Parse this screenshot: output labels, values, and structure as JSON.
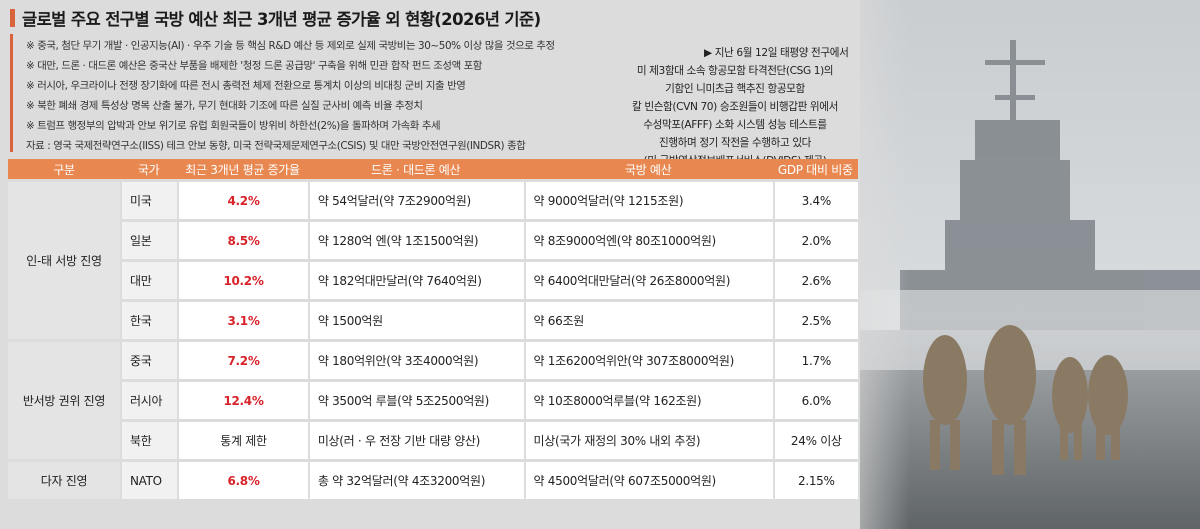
{
  "header": {
    "title": "글로벌 주요 전구별 국방 예산 최근 3개년 평균 증가율 외 현황(2026년 기준)"
  },
  "notes": [
    "※ 중국, 첨단 무기 개발 · 인공지능(AI) · 우주 기술 등 핵심 R&D 예산 등 제외로 실제 국방비는 30~50% 이상 많을 것으로 추정",
    "※ 대만, 드론 · 대드론 예산은 중국산 부품을 배제한 '청정 드론 공급망' 구축을 위해 민관 합작 펀드 조성액 포함",
    "※ 러시아, 우크라이나 전쟁 장기화에 따른 전시 총력전 체제 전환으로 통계치 이상의 비대칭 군비 지출 반영",
    "※ 북한 폐쇄 경제 특성상 명목 산출 불가, 무기 현대화 기조에 따른 실질 군사비 예측 비율 추정치",
    "※ 트럼프 행정부의 압박과 안보 위기로 유럽 회원국들이 방위비 하한선(2%)을 돌파하며 가속화 추세"
  ],
  "source": "자료 : 영국 국제전략연구소(IISS) 테크 안보 동향, 미국 전략국제문제연구소(CSIS) 및 대만 국방안전연구원(INDSR) 종합",
  "photo_caption": [
    "▶ 지난 6월 12일 태평양 전구에서",
    "미 제3함대 소속 항공모함 타격전단(CSG 1)의",
    "기함인 니미츠급 핵추진 항공모함",
    "칼 빈슨함(CVN 70) 승조원들이 비행갑판 위에서",
    "수성막포(AFFF) 소화 시스템 성능 테스트를",
    "진행하며 정기 작전을 수행하고 있다",
    "(미 국방영상정보배포서비스(DVIDS) 제공)"
  ],
  "table": {
    "columns": [
      "구분",
      "국가",
      "최근 3개년 평균 증가율",
      "드론 · 대드론 예산",
      "국방 예산",
      "GDP 대비 비중"
    ],
    "groups": [
      {
        "name": "인-태 서방 진영",
        "rows": [
          [
            "미국",
            "4.2%",
            "약 54억달러(약 7조2900억원)",
            "약 9000억달러(약 1215조원)",
            "3.4%"
          ],
          [
            "일본",
            "8.5%",
            "약 1280억 엔(약 1조1500억원)",
            "약 8조9000억엔(약 80조1000억원)",
            "2.0%"
          ],
          [
            "대만",
            "10.2%",
            "약 182억대만달러(약 7640억원)",
            "약 6400억대만달러(약 26조8000억원)",
            "2.6%"
          ],
          [
            "한국",
            "3.1%",
            "약 1500억원",
            "약 66조원",
            "2.5%"
          ]
        ]
      },
      {
        "name": "반서방 권위 진영",
        "rows": [
          [
            "중국",
            "7.2%",
            "약 180억위안(약 3조4000억원)",
            "약 1조6200억위안(약 307조8000억원)",
            "1.7%"
          ],
          [
            "러시아",
            "12.4%",
            "약 3500억 루블(약 5조2500억원)",
            "약 10조8000억루블(약 162조원)",
            "6.0%"
          ],
          [
            "북한",
            "통계 제한",
            "미상(러 · 우 전장 기반 대량 양산)",
            "미상(국가 재정의 30% 내외 추정)",
            "24% 이상"
          ]
        ]
      },
      {
        "name": "다자 진영",
        "rows": [
          [
            "NATO",
            "6.8%",
            "총 약 32억달러(약 4조3200억원)",
            "약 4500억달러(약 607조5000억원)",
            "2.15%"
          ]
        ]
      }
    ]
  }
}
